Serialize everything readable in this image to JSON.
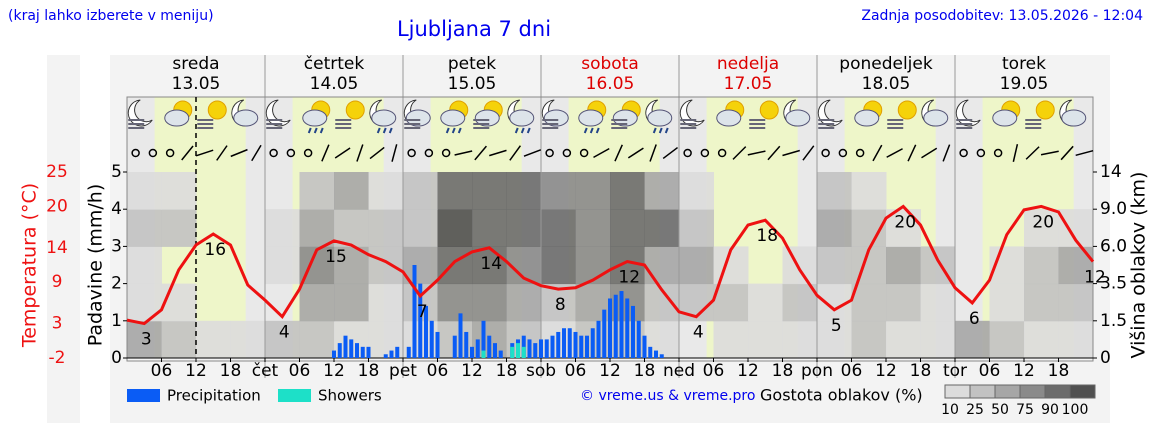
{
  "header": {
    "note": "(kraj lahko izberete v meniju)",
    "title": "Ljubljana 7 dni",
    "updated": "Zadnja posodobitev: 13.05.2026 - 12:04"
  },
  "days": [
    {
      "name": "sreda",
      "date": "13.05",
      "color": "#000000"
    },
    {
      "name": "četrtek",
      "date": "14.05",
      "color": "#000000"
    },
    {
      "name": "petek",
      "date": "15.05",
      "color": "#000000"
    },
    {
      "name": "sobota",
      "date": "16.05",
      "color": "#dd0000"
    },
    {
      "name": "nedelja",
      "date": "17.05",
      "color": "#dd0000"
    },
    {
      "name": "ponedeljek",
      "date": "18.05",
      "color": "#000000"
    },
    {
      "name": "torek",
      "date": "19.05",
      "color": "#000000"
    }
  ],
  "chart_data": {
    "type": "meteogram",
    "ylabel": "Padavine (mm/h)",
    "y2label": "Temperatura (°C)",
    "y3label": "Višina oblakov (km)",
    "xlim": [
      0,
      168
    ],
    "xticks": [
      {
        "value": 6,
        "label": "06"
      },
      {
        "value": 12,
        "label": "12"
      },
      {
        "value": 18,
        "label": "18"
      },
      {
        "value": 24,
        "label": "čet"
      },
      {
        "value": 30,
        "label": "06"
      },
      {
        "value": 36,
        "label": "12"
      },
      {
        "value": 42,
        "label": "18"
      },
      {
        "value": 48,
        "label": "pet"
      },
      {
        "value": 54,
        "label": "06"
      },
      {
        "value": 60,
        "label": "12"
      },
      {
        "value": 66,
        "label": "18"
      },
      {
        "value": 72,
        "label": "sob"
      },
      {
        "value": 78,
        "label": "06"
      },
      {
        "value": 84,
        "label": "12"
      },
      {
        "value": 90,
        "label": "18"
      },
      {
        "value": 96,
        "label": "ned"
      },
      {
        "value": 102,
        "label": "06"
      },
      {
        "value": 108,
        "label": "12"
      },
      {
        "value": 114,
        "label": "18"
      },
      {
        "value": 120,
        "label": "pon"
      },
      {
        "value": 126,
        "label": "06"
      },
      {
        "value": 132,
        "label": "12"
      },
      {
        "value": 138,
        "label": "18"
      },
      {
        "value": 144,
        "label": "tor"
      },
      {
        "value": 150,
        "label": "06"
      },
      {
        "value": 156,
        "label": "12"
      },
      {
        "value": 162,
        "label": "18"
      }
    ],
    "now": 12,
    "ylim": [
      0,
      5
    ],
    "yticks": [
      0,
      1,
      2,
      3,
      4,
      5
    ],
    "y2lim": [
      -2,
      25
    ],
    "y2ticks": [
      -2,
      3,
      9,
      14,
      20,
      25
    ],
    "y3ticks": [
      0,
      1.5,
      3.5,
      {
        "value": 6,
        "label": "6.0"
      },
      {
        "value": 9,
        "label": "9.0"
      },
      14
    ],
    "temperature": {
      "color": "#ee1111",
      "x": [
        0,
        3,
        6,
        9,
        12,
        15,
        18,
        21,
        24,
        27,
        30,
        33,
        36,
        39,
        42,
        45,
        48,
        51,
        54,
        57,
        60,
        63,
        66,
        69,
        72,
        75,
        78,
        81,
        84,
        87,
        90,
        93,
        96,
        99,
        102,
        105,
        108,
        111,
        114,
        117,
        120,
        123,
        126,
        129,
        132,
        135,
        138,
        141,
        144,
        147,
        150,
        153,
        156,
        159,
        162,
        165,
        168
      ],
      "values": [
        3.5,
        3,
        5,
        10.8,
        14.4,
        16,
        14.4,
        8.6,
        6.4,
        4,
        8,
        13.7,
        15,
        14.4,
        13,
        12,
        10.5,
        7,
        9.3,
        12,
        13.4,
        14,
        12,
        9.6,
        8.5,
        8,
        8.2,
        9.3,
        10.8,
        12,
        11.5,
        7.9,
        4.7,
        4,
        6.4,
        13.7,
        17.3,
        18,
        15.4,
        10.8,
        7.1,
        5,
        6.4,
        13.7,
        18.3,
        20,
        17.3,
        12.2,
        8.2,
        6,
        9.3,
        15.9,
        19.5,
        20,
        19.2,
        15.1,
        12
      ],
      "value_labels": [
        null,
        "3",
        null,
        null,
        null,
        "16",
        null,
        null,
        null,
        "4",
        null,
        null,
        "15",
        null,
        null,
        null,
        null,
        "7",
        null,
        null,
        null,
        "14",
        null,
        null,
        null,
        "8",
        null,
        null,
        null,
        "12",
        null,
        null,
        null,
        "4",
        null,
        null,
        null,
        "18",
        null,
        null,
        null,
        "5",
        null,
        null,
        null,
        "20",
        null,
        null,
        null,
        "6",
        null,
        null,
        null,
        "20",
        null,
        null,
        "12"
      ]
    },
    "series": [
      {
        "name": "Precipitation",
        "color": "#0a5cf5",
        "x": [
          36,
          37,
          38,
          39,
          40,
          41,
          42,
          43,
          44,
          45,
          46,
          47,
          48,
          49,
          50,
          51,
          52,
          53,
          54,
          55,
          56,
          57,
          58,
          59,
          60,
          61,
          62,
          63,
          64,
          65,
          66,
          67,
          68,
          69,
          70,
          71,
          72,
          73,
          74,
          75,
          76,
          77,
          78,
          79,
          80,
          81,
          82,
          83,
          84,
          85,
          86,
          87,
          88,
          89,
          90,
          91,
          92,
          93
        ],
        "values": [
          0.2,
          0.4,
          0.6,
          0.5,
          0.4,
          0.3,
          0.3,
          0,
          0,
          0.1,
          0.2,
          0.3,
          0,
          0.3,
          2.5,
          2.0,
          1.4,
          1.0,
          0.7,
          0,
          0,
          0.6,
          1.2,
          0.7,
          0.3,
          0.5,
          1.0,
          0.6,
          0.4,
          0.2,
          0,
          0.4,
          0.5,
          0.6,
          0.5,
          0.4,
          0.5,
          0.5,
          0.6,
          0.7,
          0.8,
          0.8,
          0.7,
          0.6,
          0.6,
          0.8,
          1.0,
          1.3,
          1.6,
          1.7,
          1.8,
          1.6,
          1.4,
          1.0,
          0.6,
          0.3,
          0.2,
          0.1
        ]
      },
      {
        "name": "Showers",
        "color": "#1de0c8",
        "x": [
          62,
          67,
          68,
          69
        ],
        "values": [
          0.2,
          0.3,
          0.4,
          0.3
        ]
      }
    ],
    "cloud_cover": {
      "values": [
        [
          50,
          25,
          10,
          10,
          25,
          25,
          10,
          10,
          10,
          25,
          50,
          25,
          10,
          25,
          25,
          10,
          0,
          10,
          10,
          10,
          10,
          25,
          10,
          10,
          50,
          25,
          10,
          10
        ],
        [
          10,
          10,
          0,
          0,
          0,
          50,
          50,
          10,
          25,
          75,
          75,
          50,
          25,
          50,
          75,
          25,
          25,
          25,
          10,
          25,
          10,
          25,
          25,
          10,
          0,
          10,
          25,
          25
        ],
        [
          10,
          0,
          0,
          0,
          10,
          75,
          50,
          25,
          50,
          90,
          90,
          75,
          90,
          75,
          90,
          50,
          50,
          10,
          0,
          10,
          25,
          25,
          50,
          25,
          0,
          10,
          25,
          50
        ],
        [
          25,
          25,
          0,
          0,
          10,
          50,
          25,
          25,
          25,
          100,
          90,
          90,
          90,
          75,
          90,
          90,
          25,
          0,
          0,
          0,
          50,
          25,
          10,
          0,
          0,
          0,
          10,
          10
        ],
        [
          10,
          10,
          0,
          0,
          0,
          25,
          50,
          10,
          25,
          90,
          90,
          90,
          75,
          75,
          90,
          50,
          10,
          0,
          0,
          0,
          25,
          10,
          0,
          0,
          0,
          0,
          0,
          0
        ]
      ]
    },
    "cloud_legend": {
      "title": "Gostota oblakov (%)",
      "levels": [
        10,
        25,
        50,
        75,
        90,
        100
      ],
      "colors": [
        "#dcdcdc",
        "#c2c2c2",
        "#a6a6a6",
        "#8a8a8a",
        "#6c6c6c",
        "#505050"
      ]
    },
    "credit": "© vreme.us & vreme.pro"
  }
}
